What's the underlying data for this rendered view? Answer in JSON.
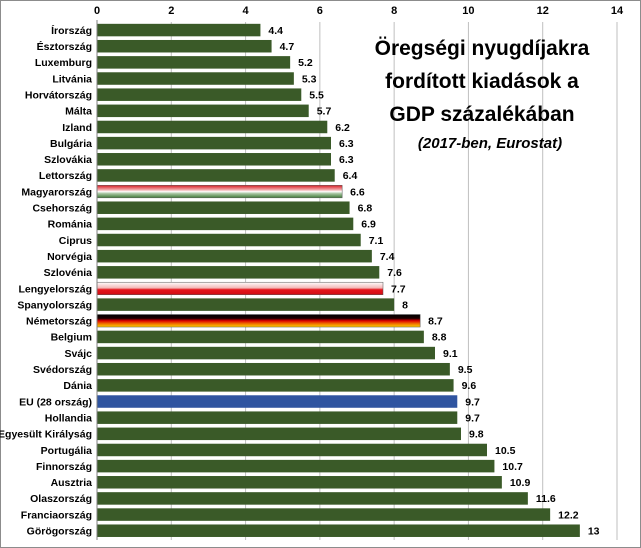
{
  "chart_data": {
    "type": "bar",
    "orientation": "horizontal",
    "title_lines": [
      "Öregségi nyugdíjakra",
      "fordított kiadások a",
      "GDP százalékában"
    ],
    "subtitle": "(2017-ben, Eurostat)",
    "xlim": [
      0,
      14
    ],
    "xticks": [
      "0",
      "2",
      "4",
      "6",
      "8",
      "10",
      "12",
      "14"
    ],
    "tick_position": "top",
    "grid": true,
    "colors": {
      "default_bar": "#3a5a28",
      "eu_bar": "#2f54a0",
      "grid": "#bfbfbf"
    },
    "categories": [
      "Írország",
      "Észtország",
      "Luxemburg",
      "Litvánia",
      "Horvátország",
      "Málta",
      "Izland",
      "Bulgária",
      "Szlovákia",
      "Lettország",
      "Magyarország",
      "Csehország",
      "Románia",
      "Ciprus",
      "Norvégia",
      "Szlovénia",
      "Lengyelország",
      "Spanyolország",
      "Németország",
      "Belgium",
      "Svájc",
      "Svédország",
      "Dánia",
      "EU (28 ország)",
      "Hollandia",
      "Egyesült Királyság",
      "Portugália",
      "Finnország",
      "Ausztria",
      "Olaszország",
      "Franciaország",
      "Görögország"
    ],
    "value_labels": [
      "4.4",
      "4.7",
      "5.2",
      "5.3",
      "5.5",
      "5.7",
      "6.2",
      "6.3",
      "6.3",
      "6.4",
      "6.6",
      "6.8",
      "6.9",
      "7.1",
      "7.4",
      "7.6",
      "7.7",
      "8",
      "8.7",
      "8.8",
      "9.1",
      "9.5",
      "9.6",
      "9.7",
      "9.7",
      "9.8",
      "10.5",
      "10.7",
      "10.9",
      "11.6",
      "12.2",
      "13"
    ],
    "values": [
      4.4,
      4.7,
      5.2,
      5.3,
      5.5,
      5.7,
      6.2,
      6.3,
      6.3,
      6.4,
      6.6,
      6.8,
      6.9,
      7.1,
      7.4,
      7.6,
      7.7,
      8,
      8.7,
      8.8,
      9.1,
      9.5,
      9.6,
      9.7,
      9.7,
      9.8,
      10.5,
      10.7,
      10.9,
      11.6,
      12.2,
      13
    ],
    "bar_styles": [
      "default",
      "default",
      "default",
      "default",
      "default",
      "default",
      "default",
      "default",
      "default",
      "default",
      "flag-hu",
      "default",
      "default",
      "default",
      "default",
      "default",
      "flag-pl",
      "default",
      "flag-de",
      "default",
      "default",
      "default",
      "default",
      "eu",
      "default",
      "default",
      "default",
      "default",
      "default",
      "default",
      "default",
      "default"
    ]
  }
}
